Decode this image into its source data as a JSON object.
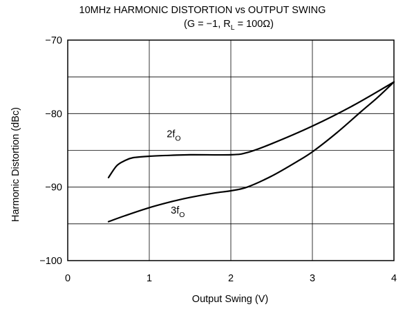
{
  "chart_data": {
    "type": "line",
    "title": "10MHz HARMONIC DISTORTION vs OUTPUT SWING",
    "subtitle": {
      "prefix": "(G = −1, R",
      "sub": "L",
      "suffix": " = 100Ω)"
    },
    "xlabel": "Output Swing (V)",
    "ylabel": "Harmonic Distortion (dBc)",
    "xlim": [
      0,
      4
    ],
    "ylim": [
      -100,
      -70
    ],
    "x_ticks": [
      0,
      1,
      2,
      3,
      4
    ],
    "x_tick_labels": [
      "0",
      "1",
      "2",
      "3",
      "4"
    ],
    "y_ticks": [
      -70,
      -80,
      -90,
      -100
    ],
    "y_tick_labels": [
      "−70",
      "−80",
      "−90",
      "−100"
    ],
    "grid": true,
    "series": [
      {
        "name": "2f",
        "name_sub": "O",
        "x": [
          0.5,
          0.6,
          0.7,
          0.8,
          1.0,
          1.2,
          1.5,
          2.0,
          2.2,
          2.5,
          3.0,
          3.5,
          4.0
        ],
        "y": [
          -88.7,
          -87.1,
          -86.4,
          -86.0,
          -85.8,
          -85.7,
          -85.6,
          -85.6,
          -85.3,
          -84.1,
          -81.7,
          -78.9,
          -75.7
        ]
      },
      {
        "name": "3f",
        "name_sub": "O",
        "x": [
          0.5,
          0.7,
          1.0,
          1.3,
          1.5,
          1.8,
          2.0,
          2.2,
          2.5,
          2.8,
          3.0,
          3.3,
          3.6,
          3.8,
          4.0
        ],
        "y": [
          -94.7,
          -93.9,
          -92.8,
          -91.9,
          -91.4,
          -90.8,
          -90.5,
          -90.0,
          -88.5,
          -86.6,
          -85.2,
          -82.6,
          -79.7,
          -77.8,
          -75.7
        ]
      }
    ]
  }
}
